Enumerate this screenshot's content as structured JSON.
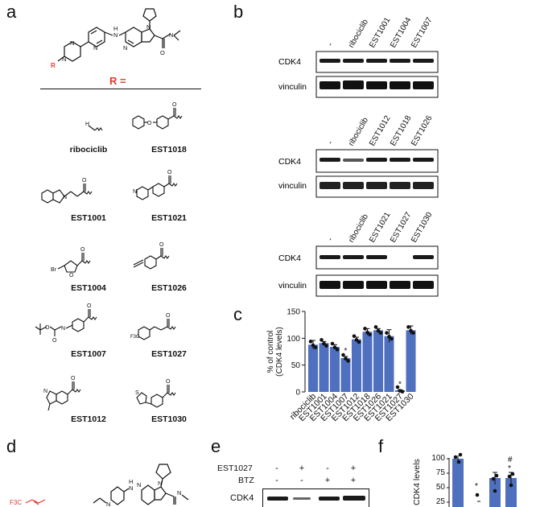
{
  "panels": {
    "a": "a",
    "b": "b",
    "c": "c",
    "d": "d",
    "e": "e",
    "f": "f"
  },
  "panel_a": {
    "r_header": "R =",
    "compounds": [
      "ribociclib",
      "EST1018",
      "EST1001",
      "EST1021",
      "EST1004",
      "EST1026",
      "EST1007",
      "EST1027",
      "EST1012",
      "EST1030"
    ],
    "atom_labels": {
      "r": "R",
      "n": "N",
      "h": "H",
      "o": "O",
      "br": "Br",
      "f3c": "F3C"
    }
  },
  "panel_b": {
    "blots": [
      {
        "lanes": [
          "-",
          "ribociclib",
          "EST1001",
          "EST1004",
          "EST1007"
        ],
        "rows": [
          "CDK4",
          "vinculin"
        ]
      },
      {
        "lanes": [
          "-",
          "ribociclib",
          "EST1012",
          "EST1018",
          "EST1026"
        ],
        "rows": [
          "CDK4",
          "vinculin"
        ]
      },
      {
        "lanes": [
          "-",
          "ribociclib",
          "EST1021",
          "EST1027",
          "EST1030"
        ],
        "rows": [
          "CDK4",
          "vinculin"
        ]
      }
    ]
  },
  "panel_e": {
    "row_labels": [
      "EST1027",
      "BTZ"
    ],
    "signs": [
      [
        "-",
        "+",
        "-",
        "+"
      ],
      [
        "-",
        "-",
        "+",
        "+"
      ]
    ],
    "blot_label": "CDK4"
  },
  "panel_f": {
    "ylabel": "CDK4 levels",
    "ticks": [
      "100",
      "75",
      "50",
      "25"
    ],
    "star": "*",
    "hash": "#"
  },
  "chart_data": {
    "type": "bar",
    "title": "",
    "ylabel": "% of control\n(CDK4 levels)",
    "ylabel_lines": [
      "% of control",
      "(CDK4 levels)"
    ],
    "xlabel": "",
    "categories": [
      "ribociclib",
      "EST1001",
      "EST1004",
      "EST1007",
      "EST1012",
      "EST1018",
      "EST1026",
      "EST1021",
      "EST1027",
      "EST1030"
    ],
    "values": [
      88,
      91,
      84,
      63,
      98,
      112,
      115,
      104,
      3,
      115
    ],
    "errors": [
      8,
      3,
      4,
      3,
      4,
      6,
      3,
      12,
      1,
      8
    ],
    "significance": [
      "",
      "",
      "",
      "*",
      "",
      "",
      "",
      "",
      "*",
      ""
    ],
    "ylim": [
      0,
      150
    ],
    "yticks": [
      0,
      50,
      100,
      150
    ],
    "bar_color": "#4f6fbf",
    "grid": false
  },
  "colors": {
    "accent_red": "#e03a2e",
    "bar": "#4f6fbf"
  }
}
